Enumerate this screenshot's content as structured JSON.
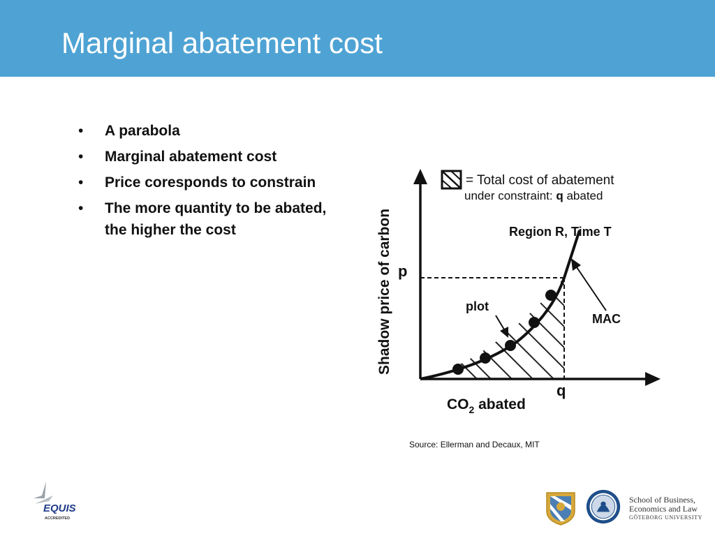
{
  "slide": {
    "title": "Marginal abatement cost",
    "bullets": [
      "A parabola",
      "Marginal abatement cost",
      "Price coresponds to constrain",
      "The more quantity to be abated, the higher the cost"
    ],
    "bullet_symbol": "•",
    "source": "Source: Ellerman and Decaux, MIT",
    "header_color": "#4fa3d4"
  },
  "diagram": {
    "legend_line1": "= Total cost of abatement",
    "legend_line2_prefix": "under constraint: ",
    "legend_line2_bold": "q",
    "legend_line2_suffix": " abated",
    "region_label": "Region R, Time T",
    "y_axis_label": "Shadow price of carbon",
    "x_axis_label_main": "CO",
    "x_axis_label_sub": "2",
    "x_axis_label_rest": " abated",
    "p_label": "p",
    "q_label": "q",
    "plot_label": "plot",
    "mac_label": "MAC"
  },
  "footer": {
    "equis_text": "EQUIS",
    "equis_sub": "ACCREDITED",
    "school_lines": [
      "School of Business,",
      "Economics and Law"
    ],
    "university": "GÖTEBORG UNIVERSITY"
  }
}
